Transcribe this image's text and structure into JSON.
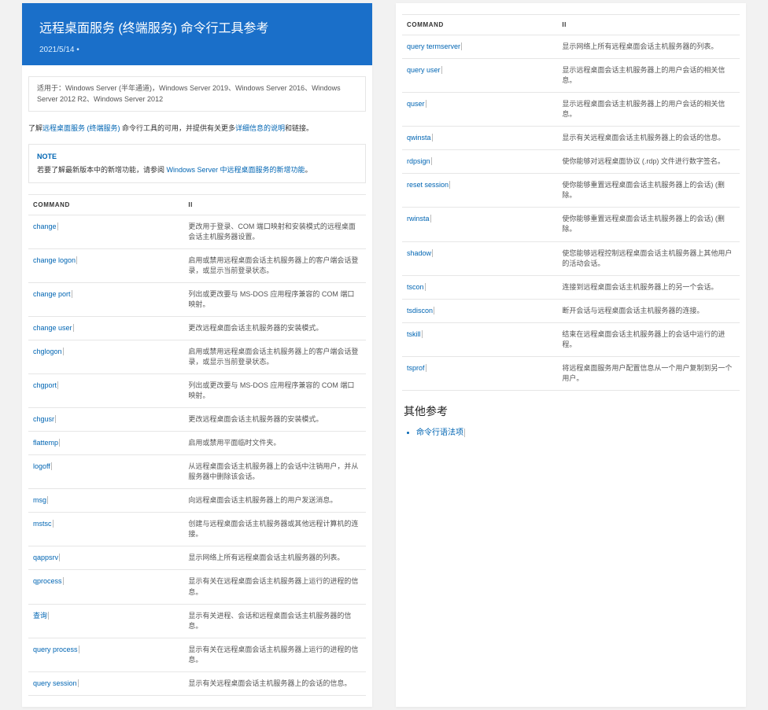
{
  "hero": {
    "title": "远程桌面服务 (终端服务) 命令行工具参考",
    "date": "2021/5/14 •"
  },
  "applies_to": "适用于：Windows Server (半年通道)，Windows Server 2019、Windows Server 2016、Windows Server 2012 R2、Windows Server 2012",
  "intro": {
    "p1": "了解",
    "l1": "远程桌面服务 (终端服务)",
    "p2": " 命令行工具的可用，并提供有关更多",
    "l2": "详细信息的说明",
    "p3": "和链接。"
  },
  "note": {
    "title": "NOTE",
    "text_pre": "若要了解最新版本中的新增功能，请参阅 ",
    "link": "Windows Server 中远程桌面服务的新增功能",
    "text_post": "。"
  },
  "table_headers": {
    "cmd": "COMMAND",
    "desc": "II"
  },
  "rows_left": [
    {
      "cmd": "change",
      "desc": "更改用于登录、COM 端口映射和安装模式的远程桌面会话主机服务器设置。"
    },
    {
      "cmd": "change logon",
      "desc": "启用或禁用远程桌面会话主机服务器上的客户端会话登录，或显示当前登录状态。"
    },
    {
      "cmd": "change port",
      "desc": "列出或更改要与 MS-DOS 应用程序兼容的 COM 端口映射。"
    },
    {
      "cmd": "change user",
      "desc": "更改远程桌面会话主机服务器的安装模式。"
    },
    {
      "cmd": "chglogon",
      "desc": "启用或禁用远程桌面会话主机服务器上的客户端会话登录，或显示当前登录状态。"
    },
    {
      "cmd": "chgport",
      "desc": "列出或更改要与 MS-DOS 应用程序兼容的 COM 端口映射。"
    },
    {
      "cmd": "chgusr",
      "desc": "更改远程桌面会话主机服务器的安装模式。"
    },
    {
      "cmd": "flattemp",
      "desc": "启用或禁用平面临时文件夹。"
    },
    {
      "cmd": "logoff",
      "desc": "从远程桌面会话主机服务器上的会话中注销用户，并从服务器中删除该会话。"
    },
    {
      "cmd": "msg",
      "desc": "向远程桌面会话主机服务器上的用户发送消息。"
    },
    {
      "cmd": "mstsc",
      "desc": "创建与远程桌面会话主机服务器或其他远程计算机的连接。"
    },
    {
      "cmd": "qappsrv",
      "desc": "显示网络上所有远程桌面会话主机服务器的列表。"
    },
    {
      "cmd": "qprocess",
      "desc": "显示有关在远程桌面会话主机服务器上运行的进程的信息。"
    },
    {
      "cmd": "查询",
      "desc": "显示有关进程、会话和远程桌面会话主机服务器的信息。"
    },
    {
      "cmd": "query process",
      "desc": "显示有关在远程桌面会话主机服务器上运行的进程的信息。"
    },
    {
      "cmd": "query session",
      "desc": "显示有关远程桌面会话主机服务器上的会话的信息。"
    }
  ],
  "rows_right": [
    {
      "cmd": "query termserver",
      "desc": "显示网络上所有远程桌面会话主机服务器的列表。"
    },
    {
      "cmd": "query user",
      "desc": "显示远程桌面会话主机服务器上的用户会话的相关信息。"
    },
    {
      "cmd": "quser",
      "desc": "显示远程桌面会话主机服务器上的用户会话的相关信息。"
    },
    {
      "cmd": "qwinsta",
      "desc": "显示有关远程桌面会话主机服务器上的会话的信息。"
    },
    {
      "cmd": "rdpsign",
      "desc": "使你能够对远程桌面协议 (.rdp) 文件进行数字签名。"
    },
    {
      "cmd": "reset session",
      "desc": "使你能够重置远程桌面会话主机服务器上的会话) (删除。"
    },
    {
      "cmd": "rwinsta",
      "desc": "使你能够重置远程桌面会话主机服务器上的会话) (删除。"
    },
    {
      "cmd": "shadow",
      "desc": "使您能够远程控制远程桌面会话主机服务器上其他用户的活动会话。"
    },
    {
      "cmd": "tscon",
      "desc": "连接到远程桌面会话主机服务器上的另一个会话。"
    },
    {
      "cmd": "tsdiscon",
      "desc": "断开会话与远程桌面会话主机服务器的连接。"
    },
    {
      "cmd": "tskill",
      "desc": "结束在远程桌面会话主机服务器上的会话中运行的进程。"
    },
    {
      "cmd": "tsprof",
      "desc": "将远程桌面服务用户配置信息从一个用户复制到另一个用户。"
    }
  ],
  "refs_heading": "其他参考",
  "refs_link": "命令行语法项"
}
